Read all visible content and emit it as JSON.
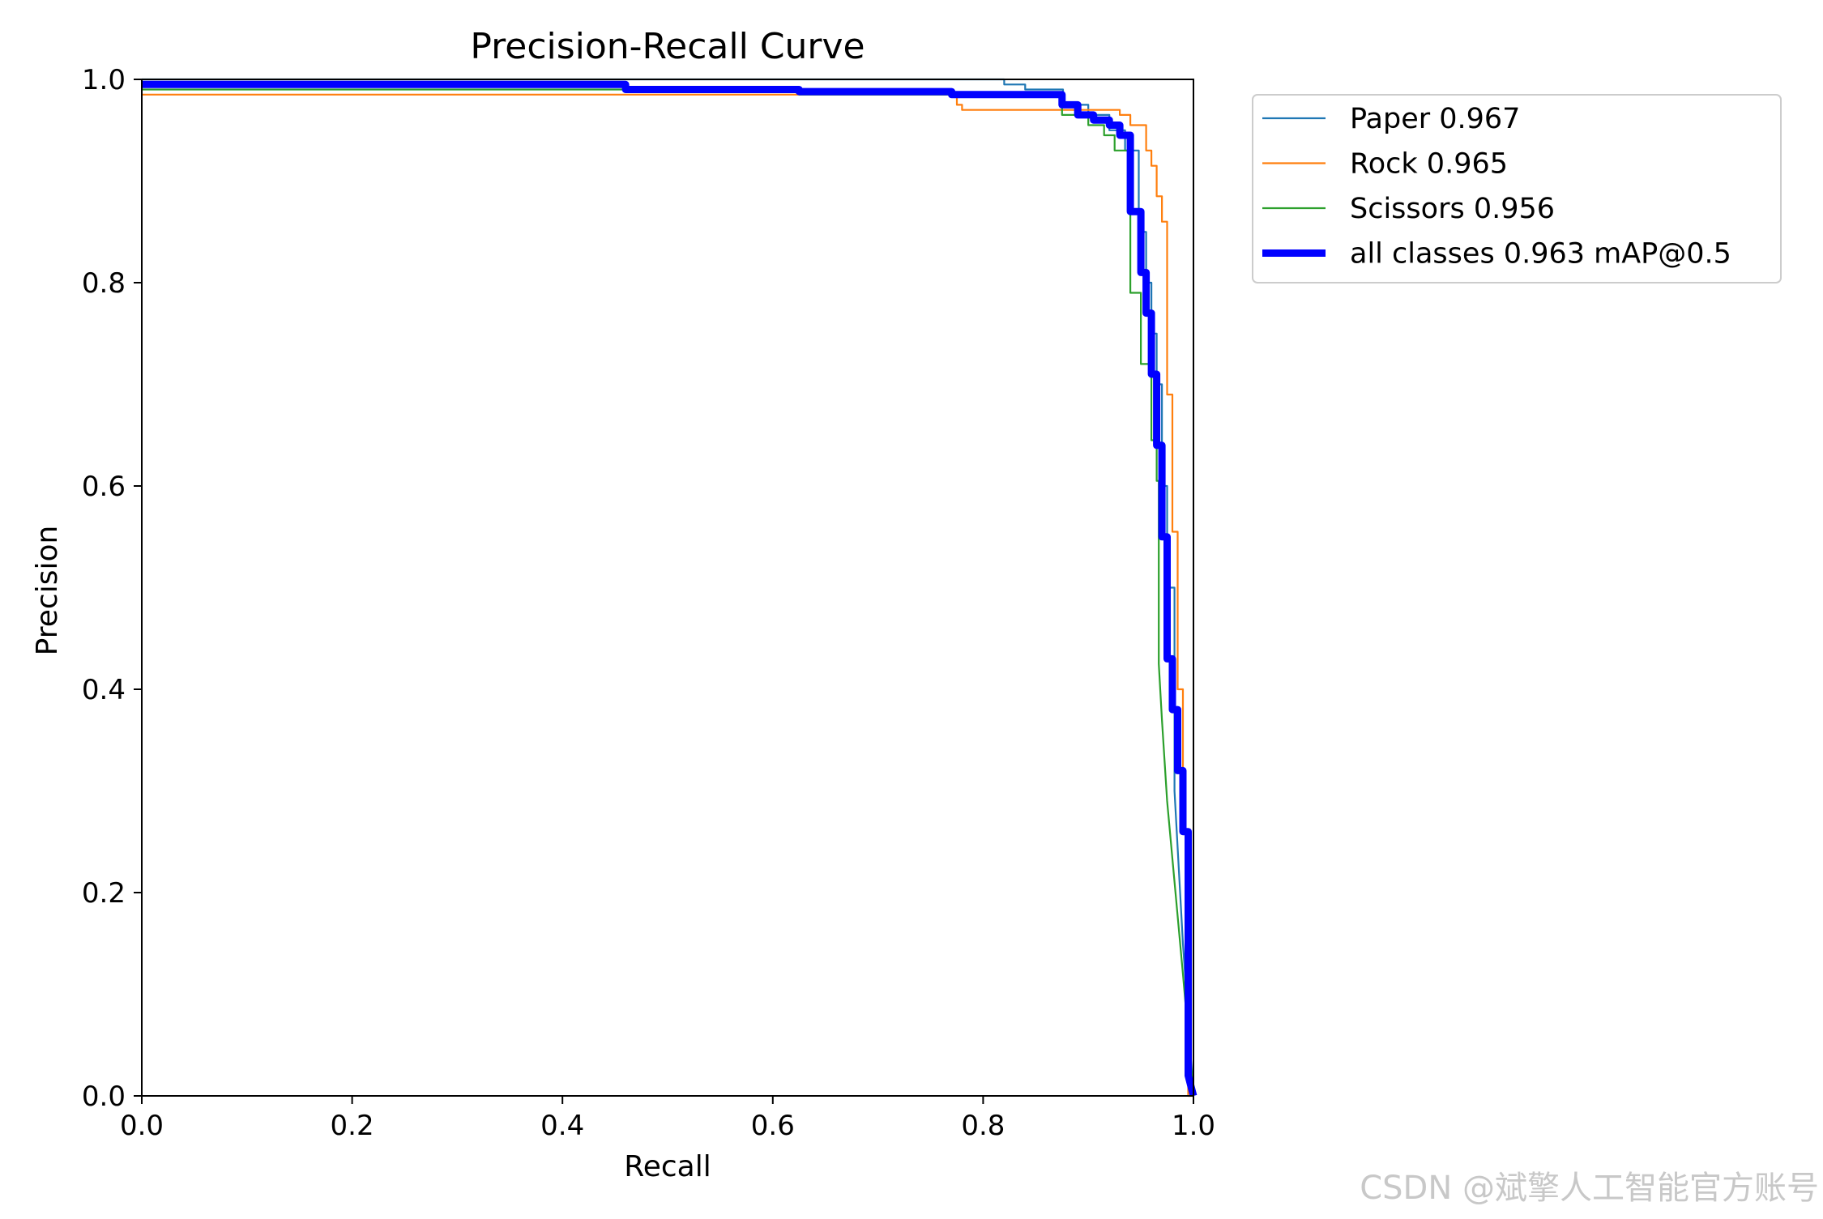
{
  "chart_data": {
    "type": "line",
    "title": "Precision-Recall Curve",
    "xlabel": "Recall",
    "ylabel": "Precision",
    "xlim": [
      0,
      1
    ],
    "ylim": [
      0,
      1
    ],
    "xticks": [
      0.0,
      0.2,
      0.4,
      0.6,
      0.8,
      1.0
    ],
    "yticks": [
      0.0,
      0.2,
      0.4,
      0.6,
      0.8,
      1.0
    ],
    "tick_labels_x": [
      "0.0",
      "0.2",
      "0.4",
      "0.6",
      "0.8",
      "1.0"
    ],
    "tick_labels_y": [
      "0.0",
      "0.2",
      "0.4",
      "0.6",
      "0.8",
      "1.0"
    ],
    "grid": false,
    "legend_position": "outside-right-top",
    "series": [
      {
        "name": "Paper 0.967",
        "color": "#1f77b4",
        "emphasis": "normal",
        "x": [
          0.0,
          0.82,
          0.82,
          0.84,
          0.84,
          0.876,
          0.876,
          0.9,
          0.9,
          0.92,
          0.92,
          0.935,
          0.935,
          0.948,
          0.948,
          0.955,
          0.955,
          0.96,
          0.96,
          0.965,
          0.965,
          0.97,
          0.97,
          0.975,
          0.975,
          0.982,
          0.982,
          0.99,
          1.0
        ],
        "y": [
          1.0,
          1.0,
          0.995,
          0.995,
          0.99,
          0.99,
          0.975,
          0.975,
          0.965,
          0.965,
          0.95,
          0.95,
          0.93,
          0.93,
          0.85,
          0.85,
          0.8,
          0.8,
          0.75,
          0.75,
          0.7,
          0.7,
          0.6,
          0.6,
          0.5,
          0.5,
          0.3,
          0.15,
          0.0
        ]
      },
      {
        "name": "Rock 0.965",
        "color": "#ff7f0e",
        "emphasis": "normal",
        "x": [
          0.0,
          0.775,
          0.775,
          0.78,
          0.78,
          0.93,
          0.93,
          0.94,
          0.94,
          0.955,
          0.955,
          0.96,
          0.96,
          0.965,
          0.965,
          0.97,
          0.97,
          0.975,
          0.975,
          0.98,
          0.98,
          0.985,
          0.985,
          0.99,
          0.99,
          0.995,
          0.995,
          1.0
        ],
        "y": [
          0.985,
          0.985,
          0.975,
          0.975,
          0.97,
          0.97,
          0.965,
          0.965,
          0.955,
          0.955,
          0.93,
          0.93,
          0.915,
          0.915,
          0.885,
          0.885,
          0.86,
          0.86,
          0.69,
          0.69,
          0.555,
          0.555,
          0.4,
          0.4,
          0.26,
          0.26,
          0.0,
          0.0
        ]
      },
      {
        "name": "Scissors 0.956",
        "color": "#2ca02c",
        "emphasis": "normal",
        "x": [
          0.0,
          0.625,
          0.625,
          0.875,
          0.875,
          0.9,
          0.9,
          0.915,
          0.915,
          0.925,
          0.925,
          0.94,
          0.94,
          0.95,
          0.95,
          0.96,
          0.96,
          0.965,
          0.965,
          0.967,
          0.967,
          0.97,
          0.975,
          0.99,
          1.0
        ],
        "y": [
          0.99,
          0.99,
          0.985,
          0.985,
          0.965,
          0.965,
          0.955,
          0.955,
          0.945,
          0.945,
          0.93,
          0.93,
          0.79,
          0.79,
          0.72,
          0.72,
          0.645,
          0.645,
          0.605,
          0.605,
          0.425,
          0.37,
          0.29,
          0.12,
          0.0
        ]
      },
      {
        "name": "all classes 0.963 mAP@0.5",
        "color": "#0000ff",
        "emphasis": "bold",
        "x": [
          0.0,
          0.46,
          0.46,
          0.625,
          0.625,
          0.77,
          0.77,
          0.875,
          0.875,
          0.89,
          0.89,
          0.905,
          0.905,
          0.92,
          0.92,
          0.93,
          0.93,
          0.94,
          0.94,
          0.95,
          0.95,
          0.955,
          0.955,
          0.96,
          0.96,
          0.965,
          0.965,
          0.97,
          0.97,
          0.975,
          0.975,
          0.98,
          0.98,
          0.985,
          0.985,
          0.99,
          0.99,
          0.995,
          0.995,
          1.0
        ],
        "y": [
          0.995,
          0.995,
          0.99,
          0.99,
          0.988,
          0.988,
          0.985,
          0.985,
          0.975,
          0.975,
          0.965,
          0.965,
          0.96,
          0.96,
          0.955,
          0.955,
          0.945,
          0.945,
          0.87,
          0.87,
          0.81,
          0.81,
          0.77,
          0.77,
          0.71,
          0.71,
          0.64,
          0.64,
          0.55,
          0.55,
          0.43,
          0.43,
          0.38,
          0.38,
          0.32,
          0.32,
          0.26,
          0.26,
          0.02,
          0.0
        ]
      }
    ]
  },
  "watermark": {
    "text": "CSDN @斌擎人工智能官方账号"
  }
}
